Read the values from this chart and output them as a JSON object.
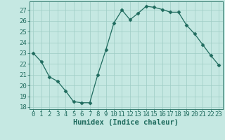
{
  "x": [
    0,
    1,
    2,
    3,
    4,
    5,
    6,
    7,
    8,
    9,
    10,
    11,
    12,
    13,
    14,
    15,
    16,
    17,
    18,
    19,
    20,
    21,
    22,
    23
  ],
  "y": [
    23.0,
    22.2,
    20.8,
    20.4,
    19.5,
    18.5,
    18.4,
    18.4,
    21.0,
    23.3,
    25.8,
    27.0,
    26.1,
    26.7,
    27.35,
    27.25,
    27.05,
    26.8,
    26.8,
    25.6,
    24.8,
    23.8,
    22.8,
    21.9
  ],
  "line_color": "#1f6b5e",
  "marker": "D",
  "marker_size": 2.5,
  "bg_color": "#c5e8e2",
  "grid_color": "#9eccc4",
  "xlabel": "Humidex (Indice chaleur)",
  "xlim": [
    -0.5,
    23.5
  ],
  "ylim": [
    17.8,
    27.8
  ],
  "yticks": [
    18,
    19,
    20,
    21,
    22,
    23,
    24,
    25,
    26,
    27
  ],
  "xticks": [
    0,
    1,
    2,
    3,
    4,
    5,
    6,
    7,
    8,
    9,
    10,
    11,
    12,
    13,
    14,
    15,
    16,
    17,
    18,
    19,
    20,
    21,
    22,
    23
  ],
  "xlabel_fontsize": 7.5,
  "tick_fontsize": 6.5,
  "label_color": "#1f6b5e"
}
